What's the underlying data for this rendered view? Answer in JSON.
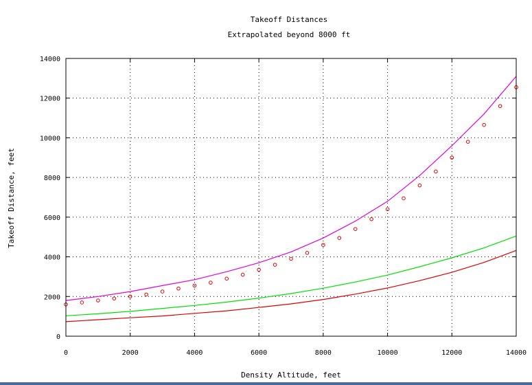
{
  "chart_data": {
    "type": "line",
    "title": "Takeoff Distances",
    "subtitle": "Extrapolated beyond 8000 ft",
    "xlabel": "Density Altitude, feet",
    "ylabel": "Takeoff Distance, feet",
    "xlim": [
      0,
      14000
    ],
    "ylim": [
      0,
      14000
    ],
    "xticks": [
      "0",
      "2000",
      "4000",
      "6000",
      "8000",
      "10000",
      "12000",
      "14000"
    ],
    "yticks": [
      "0",
      "2000",
      "4000",
      "6000",
      "8000",
      "10000",
      "12000",
      "14000"
    ],
    "grid": true,
    "series": [
      {
        "style": "line",
        "color": "#e000e0",
        "x": [
          0,
          1000,
          2000,
          3000,
          4000,
          5000,
          6000,
          7000,
          8000,
          9000,
          10000,
          11000,
          12000,
          13000,
          14000
        ],
        "y": [
          1800,
          2000,
          2250,
          2550,
          2850,
          3250,
          3700,
          4250,
          4950,
          5800,
          6800,
          8100,
          9600,
          11200,
          13100
        ]
      },
      {
        "style": "line",
        "color": "#00e000",
        "x": [
          0,
          1000,
          2000,
          3000,
          4000,
          5000,
          6000,
          7000,
          8000,
          9000,
          10000,
          11000,
          12000,
          13000,
          14000
        ],
        "y": [
          1030,
          1130,
          1250,
          1400,
          1550,
          1720,
          1920,
          2150,
          2420,
          2730,
          3080,
          3500,
          3950,
          4450,
          5050
        ]
      },
      {
        "style": "line",
        "color": "#e00000",
        "x": [
          0,
          1000,
          2000,
          3000,
          4000,
          5000,
          6000,
          7000,
          8000,
          9000,
          10000,
          11000,
          12000,
          13000,
          14000
        ],
        "y": [
          730,
          830,
          930,
          1020,
          1150,
          1280,
          1450,
          1630,
          1850,
          2120,
          2430,
          2800,
          3220,
          3720,
          4320
        ]
      },
      {
        "style": "points",
        "color": "#e00000",
        "x": [
          0,
          500,
          1000,
          1500,
          2000,
          2500,
          3000,
          3500,
          4000,
          4500,
          5000,
          5500,
          6000,
          6500,
          7000,
          7500,
          8000,
          8500,
          9000,
          9500,
          10000,
          10500,
          11000,
          11500,
          12000,
          12500,
          13000,
          13500,
          14000
        ],
        "y": [
          1600,
          1700,
          1800,
          1900,
          2000,
          2100,
          2250,
          2400,
          2550,
          2700,
          2900,
          3100,
          3350,
          3600,
          3900,
          4200,
          4600,
          4950,
          5400,
          5900,
          6400,
          6950,
          7600,
          8300,
          9000,
          9800,
          10650,
          11600,
          12550
        ]
      }
    ]
  }
}
